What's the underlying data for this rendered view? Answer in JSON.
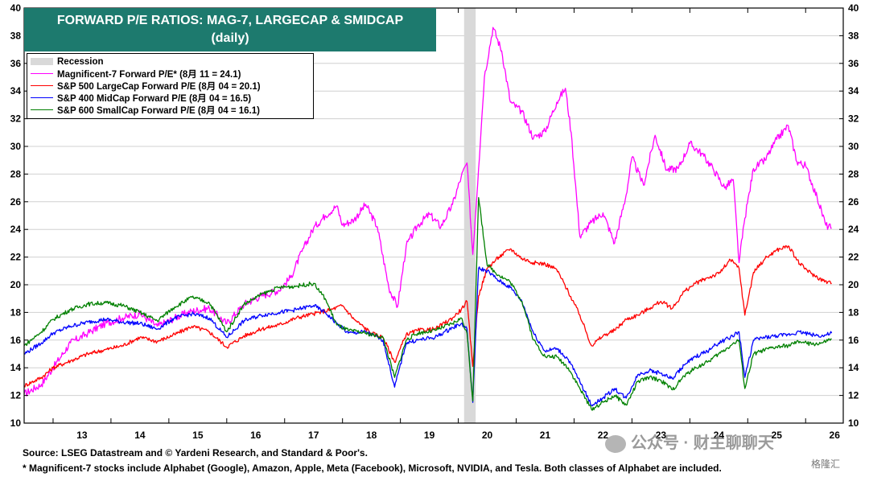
{
  "chart_data": {
    "type": "line",
    "title": "FORWARD P/E RATIOS: MAG-7, LARGECAP & SMIDCAP",
    "subtitle": "(daily)",
    "x_ticks": [
      "13",
      "14",
      "15",
      "16",
      "17",
      "18",
      "19",
      "20",
      "21",
      "22",
      "23",
      "24",
      "25",
      "26"
    ],
    "ylim": [
      10,
      40
    ],
    "y_ticks": [
      10,
      12,
      14,
      16,
      18,
      20,
      22,
      24,
      26,
      28,
      30,
      32,
      34,
      36,
      38,
      40
    ],
    "grid": true,
    "legend_position": "top-left",
    "recession": {
      "label": "Recession",
      "start": 2020.1,
      "end": 2020.3,
      "color": "#d9d9d9"
    },
    "series": [
      {
        "name": "Magnificent-7 Forward P/E* (8月 11 = 24.1)",
        "color": "#ff00ff",
        "x": [
          2012.5,
          2012.8,
          2013.0,
          2013.3,
          2013.6,
          2013.9,
          2014.2,
          2014.5,
          2014.8,
          2015.1,
          2015.4,
          2015.7,
          2016.0,
          2016.3,
          2016.6,
          2016.9,
          2017.1,
          2017.3,
          2017.5,
          2017.7,
          2017.9,
          2018.0,
          2018.2,
          2018.4,
          2018.6,
          2018.8,
          2018.95,
          2019.1,
          2019.3,
          2019.5,
          2019.7,
          2019.9,
          2020.05,
          2020.15,
          2020.25,
          2020.35,
          2020.45,
          2020.6,
          2020.75,
          2020.9,
          2021.1,
          2021.3,
          2021.5,
          2021.7,
          2021.85,
          2021.95,
          2022.1,
          2022.3,
          2022.5,
          2022.7,
          2022.9,
          2023.0,
          2023.2,
          2023.4,
          2023.6,
          2023.8,
          2024.0,
          2024.2,
          2024.4,
          2024.6,
          2024.75,
          2024.85,
          2024.95,
          2025.1,
          2025.3,
          2025.5,
          2025.7,
          2025.85,
          2026.0,
          2026.2,
          2026.35,
          2026.45
        ],
        "values": [
          12.1,
          12.8,
          14.0,
          15.8,
          16.5,
          17.2,
          17.6,
          17.9,
          17.0,
          17.6,
          18.1,
          18.3,
          17.2,
          18.6,
          19.2,
          19.6,
          20.5,
          22.4,
          24.1,
          25.0,
          25.7,
          24.3,
          24.7,
          25.8,
          24.2,
          19.8,
          18.4,
          22.8,
          24.3,
          25.1,
          24.2,
          25.8,
          27.8,
          28.8,
          22.2,
          28.4,
          35.0,
          38.6,
          36.9,
          33.2,
          32.5,
          30.6,
          31.1,
          33.2,
          34.2,
          31.0,
          23.5,
          24.5,
          25.2,
          23.0,
          26.5,
          29.2,
          27.2,
          30.8,
          28.3,
          28.4,
          30.2,
          29.5,
          28.4,
          27.0,
          27.6,
          21.6,
          24.8,
          28.4,
          29.0,
          30.5,
          31.5,
          28.9,
          28.6,
          26.3,
          24.3,
          24.1
        ]
      },
      {
        "name": "S&P 500 LargeCap Forward P/E (8月 04 = 20.1)",
        "color": "#ff0000",
        "x": [
          2012.5,
          2012.8,
          2013.0,
          2013.3,
          2013.6,
          2013.9,
          2014.2,
          2014.5,
          2014.8,
          2015.1,
          2015.4,
          2015.7,
          2016.0,
          2016.3,
          2016.6,
          2016.9,
          2017.2,
          2017.5,
          2017.8,
          2018.0,
          2018.2,
          2018.5,
          2018.7,
          2018.9,
          2019.1,
          2019.3,
          2019.6,
          2019.9,
          2020.05,
          2020.15,
          2020.25,
          2020.35,
          2020.5,
          2020.7,
          2020.9,
          2021.1,
          2021.3,
          2021.5,
          2021.7,
          2021.9,
          2022.1,
          2022.3,
          2022.5,
          2022.7,
          2022.9,
          2023.1,
          2023.3,
          2023.5,
          2023.7,
          2023.9,
          2024.1,
          2024.3,
          2024.5,
          2024.7,
          2024.85,
          2024.95,
          2025.1,
          2025.3,
          2025.5,
          2025.7,
          2025.9,
          2026.1,
          2026.3,
          2026.45
        ],
        "values": [
          12.7,
          13.3,
          14.0,
          14.5,
          15.0,
          15.3,
          15.6,
          16.2,
          15.9,
          16.4,
          17.0,
          16.6,
          15.5,
          16.3,
          16.8,
          17.1,
          17.6,
          17.9,
          18.2,
          18.5,
          17.5,
          16.5,
          16.2,
          14.4,
          16.4,
          16.7,
          16.8,
          17.6,
          18.2,
          18.8,
          14.1,
          19.2,
          21.2,
          22.0,
          22.6,
          21.9,
          21.6,
          21.5,
          21.1,
          19.5,
          17.8,
          15.6,
          16.3,
          16.7,
          17.5,
          17.8,
          18.3,
          18.8,
          18.3,
          19.5,
          20.1,
          20.5,
          20.8,
          21.8,
          21.2,
          17.8,
          20.9,
          21.9,
          22.5,
          22.8,
          21.5,
          20.8,
          20.3,
          20.1
        ]
      },
      {
        "name": "S&P 400 MidCap Forward P/E (8月 04 = 16.5)",
        "color": "#0000ff",
        "x": [
          2012.5,
          2012.8,
          2013.0,
          2013.3,
          2013.6,
          2013.9,
          2014.2,
          2014.5,
          2014.8,
          2015.1,
          2015.4,
          2015.7,
          2016.0,
          2016.3,
          2016.6,
          2016.9,
          2017.2,
          2017.5,
          2017.7,
          2017.9,
          2018.1,
          2018.4,
          2018.7,
          2018.9,
          2019.1,
          2019.3,
          2019.6,
          2019.9,
          2020.05,
          2020.15,
          2020.25,
          2020.35,
          2020.5,
          2020.7,
          2020.9,
          2021.1,
          2021.3,
          2021.5,
          2021.7,
          2021.9,
          2022.1,
          2022.3,
          2022.5,
          2022.7,
          2022.9,
          2023.1,
          2023.3,
          2023.5,
          2023.7,
          2023.9,
          2024.1,
          2024.3,
          2024.5,
          2024.7,
          2024.85,
          2024.95,
          2025.1,
          2025.3,
          2025.5,
          2025.7,
          2025.9,
          2026.1,
          2026.3,
          2026.45
        ],
        "values": [
          15.0,
          15.8,
          16.5,
          17.0,
          17.3,
          17.5,
          17.3,
          17.2,
          16.8,
          17.6,
          17.9,
          17.6,
          16.2,
          17.4,
          17.8,
          18.0,
          18.2,
          18.5,
          18.0,
          17.2,
          16.5,
          16.6,
          16.0,
          12.6,
          15.8,
          16.0,
          16.2,
          16.9,
          17.2,
          16.8,
          11.5,
          21.2,
          21.0,
          20.3,
          19.8,
          18.8,
          16.5,
          15.2,
          15.4,
          14.6,
          13.0,
          11.3,
          11.8,
          12.5,
          11.8,
          13.5,
          13.8,
          13.6,
          13.2,
          14.2,
          14.8,
          15.2,
          15.8,
          16.2,
          16.6,
          13.3,
          16.0,
          16.2,
          16.3,
          16.4,
          16.6,
          16.4,
          16.3,
          16.5
        ]
      },
      {
        "name": "S&P 600 SmallCap Forward P/E (8月 04 = 16.1)",
        "color": "#008000",
        "x": [
          2012.5,
          2012.8,
          2013.0,
          2013.3,
          2013.6,
          2013.9,
          2014.2,
          2014.5,
          2014.8,
          2015.1,
          2015.4,
          2015.7,
          2016.0,
          2016.3,
          2016.6,
          2016.9,
          2017.2,
          2017.5,
          2017.7,
          2017.9,
          2018.1,
          2018.4,
          2018.7,
          2018.9,
          2019.1,
          2019.3,
          2019.6,
          2019.9,
          2020.05,
          2020.15,
          2020.25,
          2020.35,
          2020.5,
          2020.7,
          2020.9,
          2021.1,
          2021.3,
          2021.5,
          2021.7,
          2021.9,
          2022.1,
          2022.3,
          2022.5,
          2022.7,
          2022.9,
          2023.1,
          2023.3,
          2023.5,
          2023.7,
          2023.9,
          2024.1,
          2024.3,
          2024.5,
          2024.7,
          2024.85,
          2024.95,
          2025.1,
          2025.3,
          2025.5,
          2025.7,
          2025.9,
          2026.1,
          2026.3,
          2026.45
        ],
        "values": [
          15.6,
          16.6,
          17.5,
          18.2,
          18.6,
          18.7,
          18.5,
          18.0,
          17.4,
          18.4,
          19.1,
          18.7,
          16.6,
          18.6,
          19.3,
          19.8,
          19.9,
          20.1,
          19.0,
          17.1,
          16.7,
          16.5,
          16.2,
          13.3,
          16.0,
          16.5,
          16.7,
          17.2,
          17.6,
          16.5,
          11.6,
          26.3,
          21.4,
          20.7,
          20.2,
          18.8,
          16.0,
          14.8,
          14.8,
          14.0,
          12.5,
          11.0,
          11.5,
          12.0,
          11.3,
          13.0,
          13.3,
          13.1,
          12.4,
          13.4,
          14.0,
          14.4,
          15.0,
          15.6,
          16.0,
          12.5,
          15.0,
          15.3,
          15.5,
          15.6,
          15.9,
          15.7,
          15.8,
          16.1
        ]
      }
    ]
  },
  "legend": {
    "recession_label": "Recession",
    "mag7_label": "Magnificent-7 Forward P/E* (8月 11 = 24.1)",
    "sp500_label": "S&P 500 LargeCap Forward P/E (8月 04 = 20.1)",
    "sp400_label": "S&P 400 MidCap Forward P/E (8月 04 = 16.5)",
    "sp600_label": "S&P 600 SmallCap Forward P/E (8月 04 = 16.1)"
  },
  "footer": {
    "source": "Source: LSEG Datastream and © Yardeni Research, and Standard & Poor's.",
    "note": "* Magnificent-7 stocks include Alphabet (Google), Amazon, Apple, Meta (Facebook), Microsoft, NVIDIA, and Tesla. Both classes of Alphabet are included."
  },
  "watermark": {
    "text": "公众号 · 财主聊聊天",
    "brand": "格隆汇"
  },
  "colors": {
    "title_bg": "#1d7a6e",
    "recession": "#d9d9d9"
  }
}
